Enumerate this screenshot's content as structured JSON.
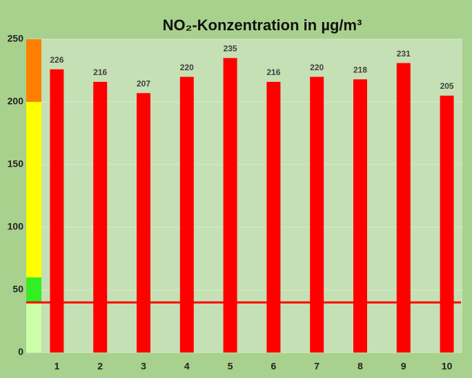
{
  "chart_data": {
    "type": "bar",
    "title": "NO₂-Konzentration in µg/m³",
    "categories": [
      "1",
      "2",
      "3",
      "4",
      "5",
      "6",
      "7",
      "8",
      "9",
      "10"
    ],
    "values": [
      226,
      216,
      207,
      220,
      235,
      216,
      220,
      218,
      231,
      205
    ],
    "color": "#ff0000",
    "ylim": [
      0,
      250
    ],
    "yticks": [
      0,
      50,
      100,
      150,
      200,
      250
    ],
    "grid": true,
    "bands": [
      {
        "from": 0,
        "to": 40,
        "color": "#ccffaa"
      },
      {
        "from": 40,
        "to": 60,
        "color": "#33ee22"
      },
      {
        "from": 60,
        "to": 200,
        "color": "#ffff00"
      },
      {
        "from": 200,
        "to": 250,
        "color": "#ff8000"
      }
    ],
    "threshold": {
      "value": 40,
      "color": "#ff0000"
    }
  }
}
